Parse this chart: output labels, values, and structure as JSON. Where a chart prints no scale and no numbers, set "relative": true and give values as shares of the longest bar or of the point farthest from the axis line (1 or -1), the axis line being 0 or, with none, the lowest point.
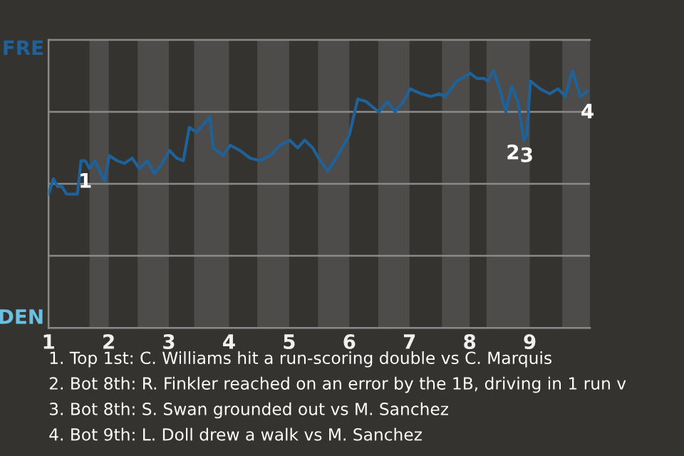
{
  "chart_data": {
    "type": "line",
    "relative": true,
    "x": [
      1.0,
      1.08,
      1.15,
      1.22,
      1.3,
      1.48,
      1.54,
      1.61,
      1.68,
      1.77,
      1.85,
      1.93,
      2.01,
      2.14,
      2.26,
      2.39,
      2.51,
      2.64,
      2.76,
      2.89,
      3.01,
      3.13,
      3.24,
      3.34,
      3.46,
      3.57,
      3.68,
      3.74,
      3.9,
      4.02,
      4.18,
      4.35,
      4.52,
      4.68,
      4.85,
      5.01,
      5.14,
      5.26,
      5.39,
      5.49,
      5.64,
      5.81,
      6.0,
      6.14,
      6.28,
      6.49,
      6.63,
      6.76,
      6.9,
      7.01,
      7.2,
      7.36,
      7.49,
      7.59,
      7.79,
      8.01,
      8.12,
      8.24,
      8.3,
      8.4,
      8.5,
      8.6,
      8.7,
      8.8,
      8.9,
      8.95,
      9.01,
      9.17,
      9.33,
      9.47,
      9.59,
      9.71,
      9.84,
      9.96
    ],
    "series": [
      {
        "color": "#1f6199",
        "values": [
          0.52,
          0.58,
          0.55,
          0.55,
          0.52,
          0.52,
          0.65,
          0.65,
          0.62,
          0.65,
          0.61,
          0.57,
          0.67,
          0.65,
          0.64,
          0.66,
          0.62,
          0.65,
          0.6,
          0.64,
          0.69,
          0.66,
          0.65,
          0.78,
          0.76,
          0.79,
          0.82,
          0.7,
          0.67,
          0.71,
          0.69,
          0.66,
          0.65,
          0.67,
          0.71,
          0.73,
          0.7,
          0.73,
          0.7,
          0.66,
          0.61,
          0.67,
          0.75,
          0.89,
          0.88,
          0.84,
          0.88,
          0.84,
          0.88,
          0.93,
          0.91,
          0.9,
          0.91,
          0.9,
          0.96,
          0.99,
          0.97,
          0.97,
          0.96,
          1,
          0.93,
          0.84,
          0.94,
          0.88,
          0.73,
          0.75,
          0.96,
          0.93,
          0.91,
          0.93,
          0.9,
          1,
          0.9,
          0.92
        ],
        "name": null
      }
    ],
    "xlim": [
      1,
      10
    ],
    "xticks": [
      1,
      2,
      3,
      4,
      5,
      6,
      7,
      8,
      9
    ],
    "grid": "y",
    "bands": [
      {
        "axis": "x",
        "from": 1.68,
        "to": 2,
        "color": "#4d4c4a"
      },
      {
        "axis": "x",
        "from": 2.48,
        "to": 3,
        "color": "#4d4c4a"
      },
      {
        "axis": "x",
        "from": 3.42,
        "to": 4,
        "color": "#4d4c4a"
      },
      {
        "axis": "x",
        "from": 4.47,
        "to": 5,
        "color": "#4d4c4a"
      },
      {
        "axis": "x",
        "from": 5.48,
        "to": 6,
        "color": "#4d4c4a"
      },
      {
        "axis": "x",
        "from": 6.48,
        "to": 7,
        "color": "#4d4c4a"
      },
      {
        "axis": "x",
        "from": 7.54,
        "to": 8,
        "color": "#4d4c4a"
      },
      {
        "axis": "x",
        "from": 8.28,
        "to": 9,
        "color": "#4d4c4a"
      },
      {
        "axis": "x",
        "from": 9.54,
        "to": 10,
        "color": "#4d4c4a"
      }
    ],
    "annotations": [
      "FRE",
      "DEN",
      {
        "text": "1",
        "x": 1.61,
        "y": 0.65
      },
      {
        "text": "2",
        "x": 8.9,
        "y": 0.73
      },
      {
        "text": "3",
        "x": 8.95,
        "y": 0.75
      },
      {
        "text": "4",
        "x": 9.96,
        "y": 0.92
      },
      "1. Top 1st: C. Williams hit a run-scoring double vs C. Marquis",
      "2. Bot 8th: R. Finkler reached on an error by the 1B, driving in 1 run v",
      "3. Bot 8th: S. Swan grounded out vs M. Sanchez",
      "4. Bot 9th: L. Doll drew a walk vs M. Sanchez"
    ]
  }
}
